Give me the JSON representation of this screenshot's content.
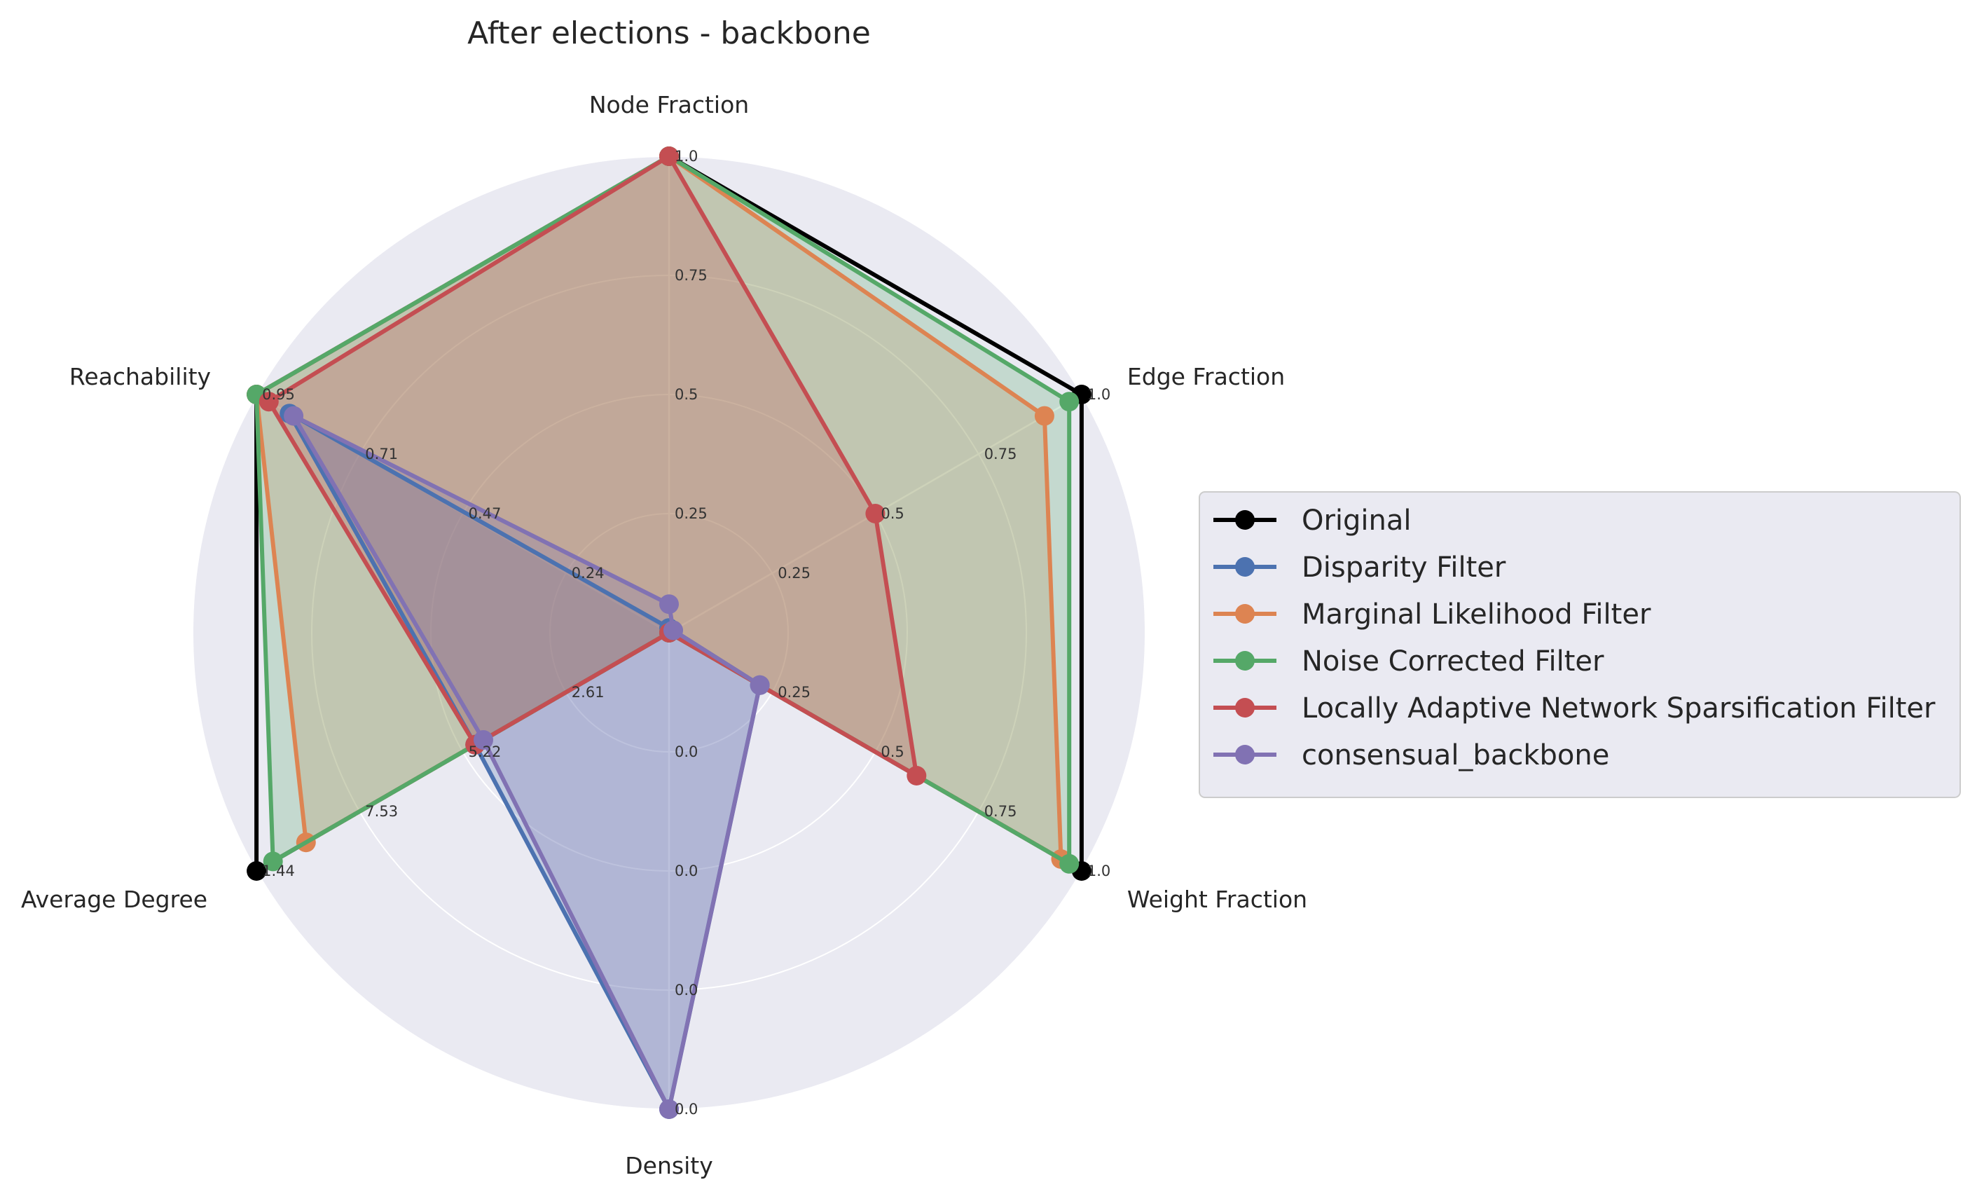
{
  "chart_data": {
    "type": "radar",
    "title": "After elections - backbone",
    "axes": [
      "Node Fraction",
      "Edge Fraction",
      "Weight Fraction",
      "Density",
      "Average Degree",
      "Reachability"
    ],
    "tick_labels": [
      [
        "1.0",
        "0.75",
        "0.5",
        "0.25"
      ],
      [
        "1.0",
        "0.75",
        "0.5",
        "0.25"
      ],
      [
        "1.0",
        "0.75",
        "0.5",
        "0.25"
      ],
      [
        "0.0",
        "0.0",
        "0.0",
        "0.0"
      ],
      [
        "1.44",
        "7.53",
        "5.22",
        "2.61"
      ],
      [
        "0.95",
        "0.71",
        "0.47",
        "0.24"
      ]
    ],
    "range": [
      0,
      1
    ],
    "grid": true,
    "legend_position": "right",
    "series": [
      {
        "name": "Original",
        "color": "#000000",
        "fill": false,
        "values": [
          1.0,
          1.0,
          1.0,
          0.0,
          1.0,
          1.0
        ]
      },
      {
        "name": "Disparity Filter",
        "color": "#4c72b0",
        "fill": true,
        "values": [
          0.01,
          0.01,
          0.22,
          1.0,
          0.47,
          0.92
        ]
      },
      {
        "name": "Marginal Likelihood Filter",
        "color": "#dd8452",
        "fill": true,
        "values": [
          1.0,
          0.91,
          0.95,
          0.0,
          0.88,
          1.0
        ]
      },
      {
        "name": "Noise Corrected Filter",
        "color": "#55a868",
        "fill": true,
        "values": [
          1.0,
          0.97,
          0.97,
          0.0,
          0.96,
          1.0
        ]
      },
      {
        "name": "Locally Adaptive Network Sparsification Filter",
        "color": "#c44e52",
        "fill": true,
        "values": [
          1.0,
          0.5,
          0.6,
          0.0,
          0.47,
          0.97
        ]
      },
      {
        "name": "consensual_backbone",
        "color": "#8172b3",
        "fill": true,
        "values": [
          0.06,
          0.01,
          0.22,
          1.0,
          0.45,
          0.91
        ]
      }
    ]
  }
}
